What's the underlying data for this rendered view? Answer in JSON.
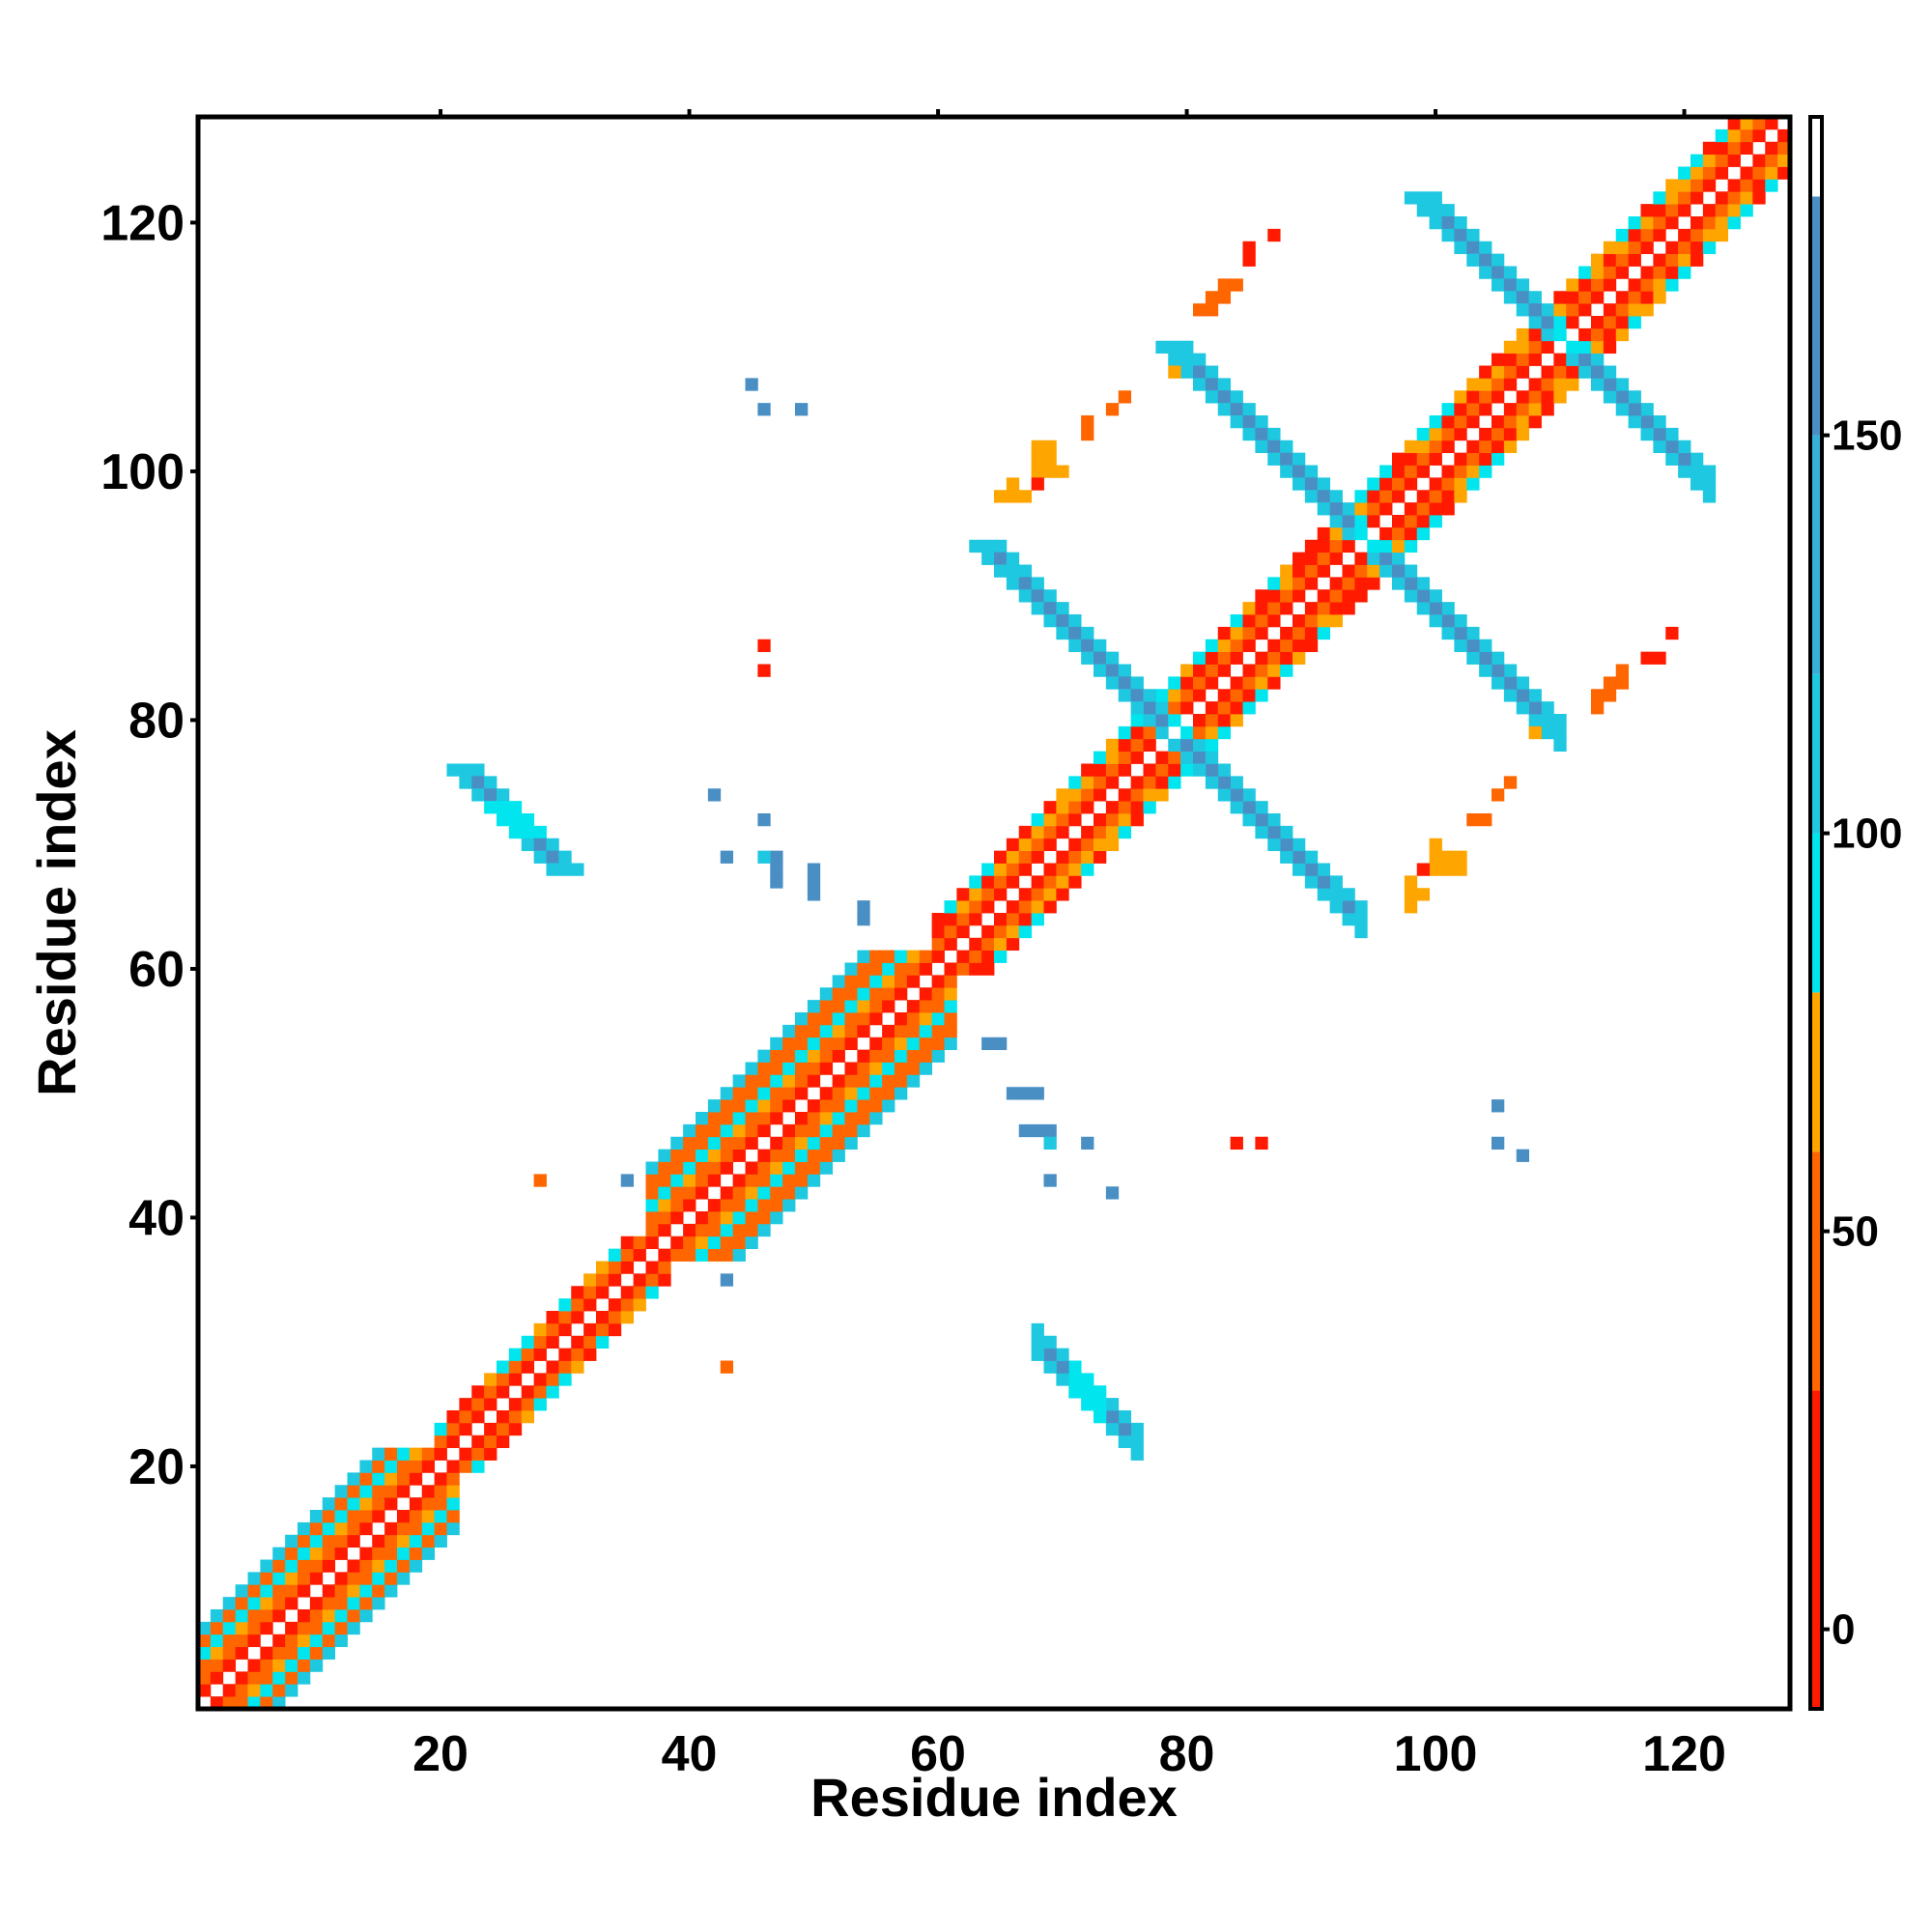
{
  "chart_data": {
    "type": "heatmap",
    "title": "",
    "xlabel": "Residue index",
    "ylabel": "Residue index",
    "xlim": [
      0.5,
      128.5
    ],
    "ylim": [
      0.5,
      128.5
    ],
    "x_ticks": [
      20,
      40,
      60,
      80,
      100,
      120
    ],
    "x_tick_labels": [
      "20",
      "40",
      "60",
      "80",
      "100",
      "120"
    ],
    "y_ticks": [
      20,
      40,
      60,
      80,
      100,
      120
    ],
    "y_tick_labels": [
      "20",
      "40",
      "60",
      "80",
      "100",
      "120"
    ],
    "grid": false,
    "colorbar": {
      "range": [
        -10,
        190
      ],
      "ticks": [
        0,
        50,
        100,
        150
      ],
      "tick_labels": [
        "0",
        "50",
        "100",
        "150"
      ],
      "bins": [
        {
          "from": -10,
          "to": 30,
          "color": "#ff1a00"
        },
        {
          "from": 30,
          "to": 60,
          "color": "#ff6600"
        },
        {
          "from": 60,
          "to": 80,
          "color": "#ffa500"
        },
        {
          "from": 80,
          "to": 100,
          "color": "#00e5ee"
        },
        {
          "from": 100,
          "to": 120,
          "color": "#1ec8e0"
        },
        {
          "from": 120,
          "to": 150,
          "color": "#36b0d8"
        },
        {
          "from": 150,
          "to": 180,
          "color": "#4a8fc4"
        },
        {
          "from": 180,
          "to": 190,
          "color": "#ffffff"
        }
      ]
    },
    "description_of_values": "Matrix is symmetric; value approx. 0-60 (red/orange) along the near diagonal i±1..i±4 in helical segments, approx. 90-170 (cyan/blue) along anti-diagonal beta-sheet contact bands.",
    "features": [
      {
        "kind": "diagonal_band",
        "start": 1,
        "end": 20,
        "width": 6,
        "pattern": "helix"
      },
      {
        "kind": "diagonal_band",
        "start": 20,
        "end": 37,
        "width": 3,
        "pattern": "mixed"
      },
      {
        "kind": "diagonal_band",
        "start": 37,
        "end": 60,
        "width": 7,
        "pattern": "helix"
      },
      {
        "kind": "diagonal_band",
        "start": 60,
        "end": 128,
        "width": 4,
        "pattern": "mixed"
      },
      {
        "kind": "antidiagonal_band",
        "center": [
          78,
          80
        ],
        "length": 28,
        "value": 150
      },
      {
        "kind": "antidiagonal_band",
        "center": [
          94,
          95
        ],
        "length": 30,
        "value": 150
      },
      {
        "kind": "antidiagonal_band",
        "center": [
          110,
          111
        ],
        "length": 22,
        "value": 150
      },
      {
        "kind": "antidiagonal_band",
        "center": [
          26,
          72
        ],
        "length": 8,
        "value": 150
      }
    ],
    "sparse_cells": [
      {
        "x": 45,
        "y": 107,
        "v": 150
      },
      {
        "x": 46,
        "y": 105,
        "v": 150
      },
      {
        "x": 49,
        "y": 105,
        "v": 150
      },
      {
        "x": 46,
        "y": 86,
        "v": 10
      },
      {
        "x": 46,
        "y": 84,
        "v": 10
      },
      {
        "x": 42,
        "y": 74,
        "v": 150
      },
      {
        "x": 46,
        "y": 72,
        "v": 150
      },
      {
        "x": 43,
        "y": 69,
        "v": 150
      },
      {
        "x": 47,
        "y": 69,
        "v": 150
      },
      {
        "x": 47,
        "y": 68,
        "v": 150
      },
      {
        "x": 47,
        "y": 67,
        "v": 150
      },
      {
        "x": 50,
        "y": 68,
        "v": 150
      },
      {
        "x": 50,
        "y": 67,
        "v": 150
      },
      {
        "x": 50,
        "y": 66,
        "v": 150
      },
      {
        "x": 54,
        "y": 65,
        "v": 150
      },
      {
        "x": 54,
        "y": 64,
        "v": 150
      },
      {
        "x": 64,
        "y": 54,
        "v": 150
      },
      {
        "x": 65,
        "y": 54,
        "v": 150
      },
      {
        "x": 66,
        "y": 50,
        "v": 150
      },
      {
        "x": 67,
        "y": 50,
        "v": 150
      },
      {
        "x": 68,
        "y": 50,
        "v": 150
      },
      {
        "x": 67,
        "y": 47,
        "v": 150
      },
      {
        "x": 68,
        "y": 47,
        "v": 150
      },
      {
        "x": 69,
        "y": 46,
        "v": 110
      },
      {
        "x": 72,
        "y": 46,
        "v": 150
      },
      {
        "x": 69,
        "y": 43,
        "v": 150
      },
      {
        "x": 74,
        "y": 42,
        "v": 150
      },
      {
        "x": 84,
        "y": 46,
        "v": 10
      },
      {
        "x": 86,
        "y": 46,
        "v": 10
      },
      {
        "x": 105,
        "y": 49,
        "v": 150
      },
      {
        "x": 105,
        "y": 46,
        "v": 150
      },
      {
        "x": 107,
        "y": 45,
        "v": 150
      },
      {
        "x": 28,
        "y": 43,
        "v": 50
      },
      {
        "x": 35,
        "y": 43,
        "v": 150
      },
      {
        "x": 43,
        "y": 35,
        "v": 150
      },
      {
        "x": 43,
        "y": 28,
        "v": 50
      },
      {
        "x": 87,
        "y": 119,
        "v": 10
      },
      {
        "x": 85,
        "y": 118,
        "v": 10
      },
      {
        "x": 85,
        "y": 117,
        "v": 10
      },
      {
        "x": 83,
        "y": 115,
        "v": 50
      },
      {
        "x": 82,
        "y": 114,
        "v": 50
      },
      {
        "x": 81,
        "y": 113,
        "v": 50
      },
      {
        "x": 79,
        "y": 108,
        "v": 70
      },
      {
        "x": 75,
        "y": 106,
        "v": 50
      },
      {
        "x": 74,
        "y": 105,
        "v": 50
      },
      {
        "x": 72,
        "y": 104,
        "v": 50
      },
      {
        "x": 72,
        "y": 103,
        "v": 50
      },
      {
        "x": 68,
        "y": 102,
        "v": 70
      },
      {
        "x": 68,
        "y": 101,
        "v": 70
      },
      {
        "x": 68,
        "y": 100,
        "v": 70
      },
      {
        "x": 69,
        "y": 100,
        "v": 70
      },
      {
        "x": 66,
        "y": 99,
        "v": 70
      },
      {
        "x": 65,
        "y": 98,
        "v": 70
      },
      {
        "x": 66,
        "y": 98,
        "v": 70
      },
      {
        "x": 119,
        "y": 87,
        "v": 10
      },
      {
        "x": 117,
        "y": 85,
        "v": 10
      },
      {
        "x": 118,
        "y": 85,
        "v": 10
      },
      {
        "x": 115,
        "y": 84,
        "v": 50
      },
      {
        "x": 114,
        "y": 83,
        "v": 50
      },
      {
        "x": 113,
        "y": 82,
        "v": 50
      },
      {
        "x": 108,
        "y": 79,
        "v": 70
      },
      {
        "x": 106,
        "y": 75,
        "v": 50
      },
      {
        "x": 105,
        "y": 74,
        "v": 50
      },
      {
        "x": 104,
        "y": 72,
        "v": 50
      },
      {
        "x": 103,
        "y": 72,
        "v": 50
      },
      {
        "x": 102,
        "y": 69,
        "v": 70
      },
      {
        "x": 101,
        "y": 69,
        "v": 70
      },
      {
        "x": 100,
        "y": 69,
        "v": 70
      },
      {
        "x": 100,
        "y": 70,
        "v": 70
      },
      {
        "x": 99,
        "y": 68,
        "v": 10
      },
      {
        "x": 98,
        "y": 67,
        "v": 70
      },
      {
        "x": 98,
        "y": 66,
        "v": 70
      },
      {
        "x": 98,
        "y": 65,
        "v": 70
      }
    ]
  }
}
